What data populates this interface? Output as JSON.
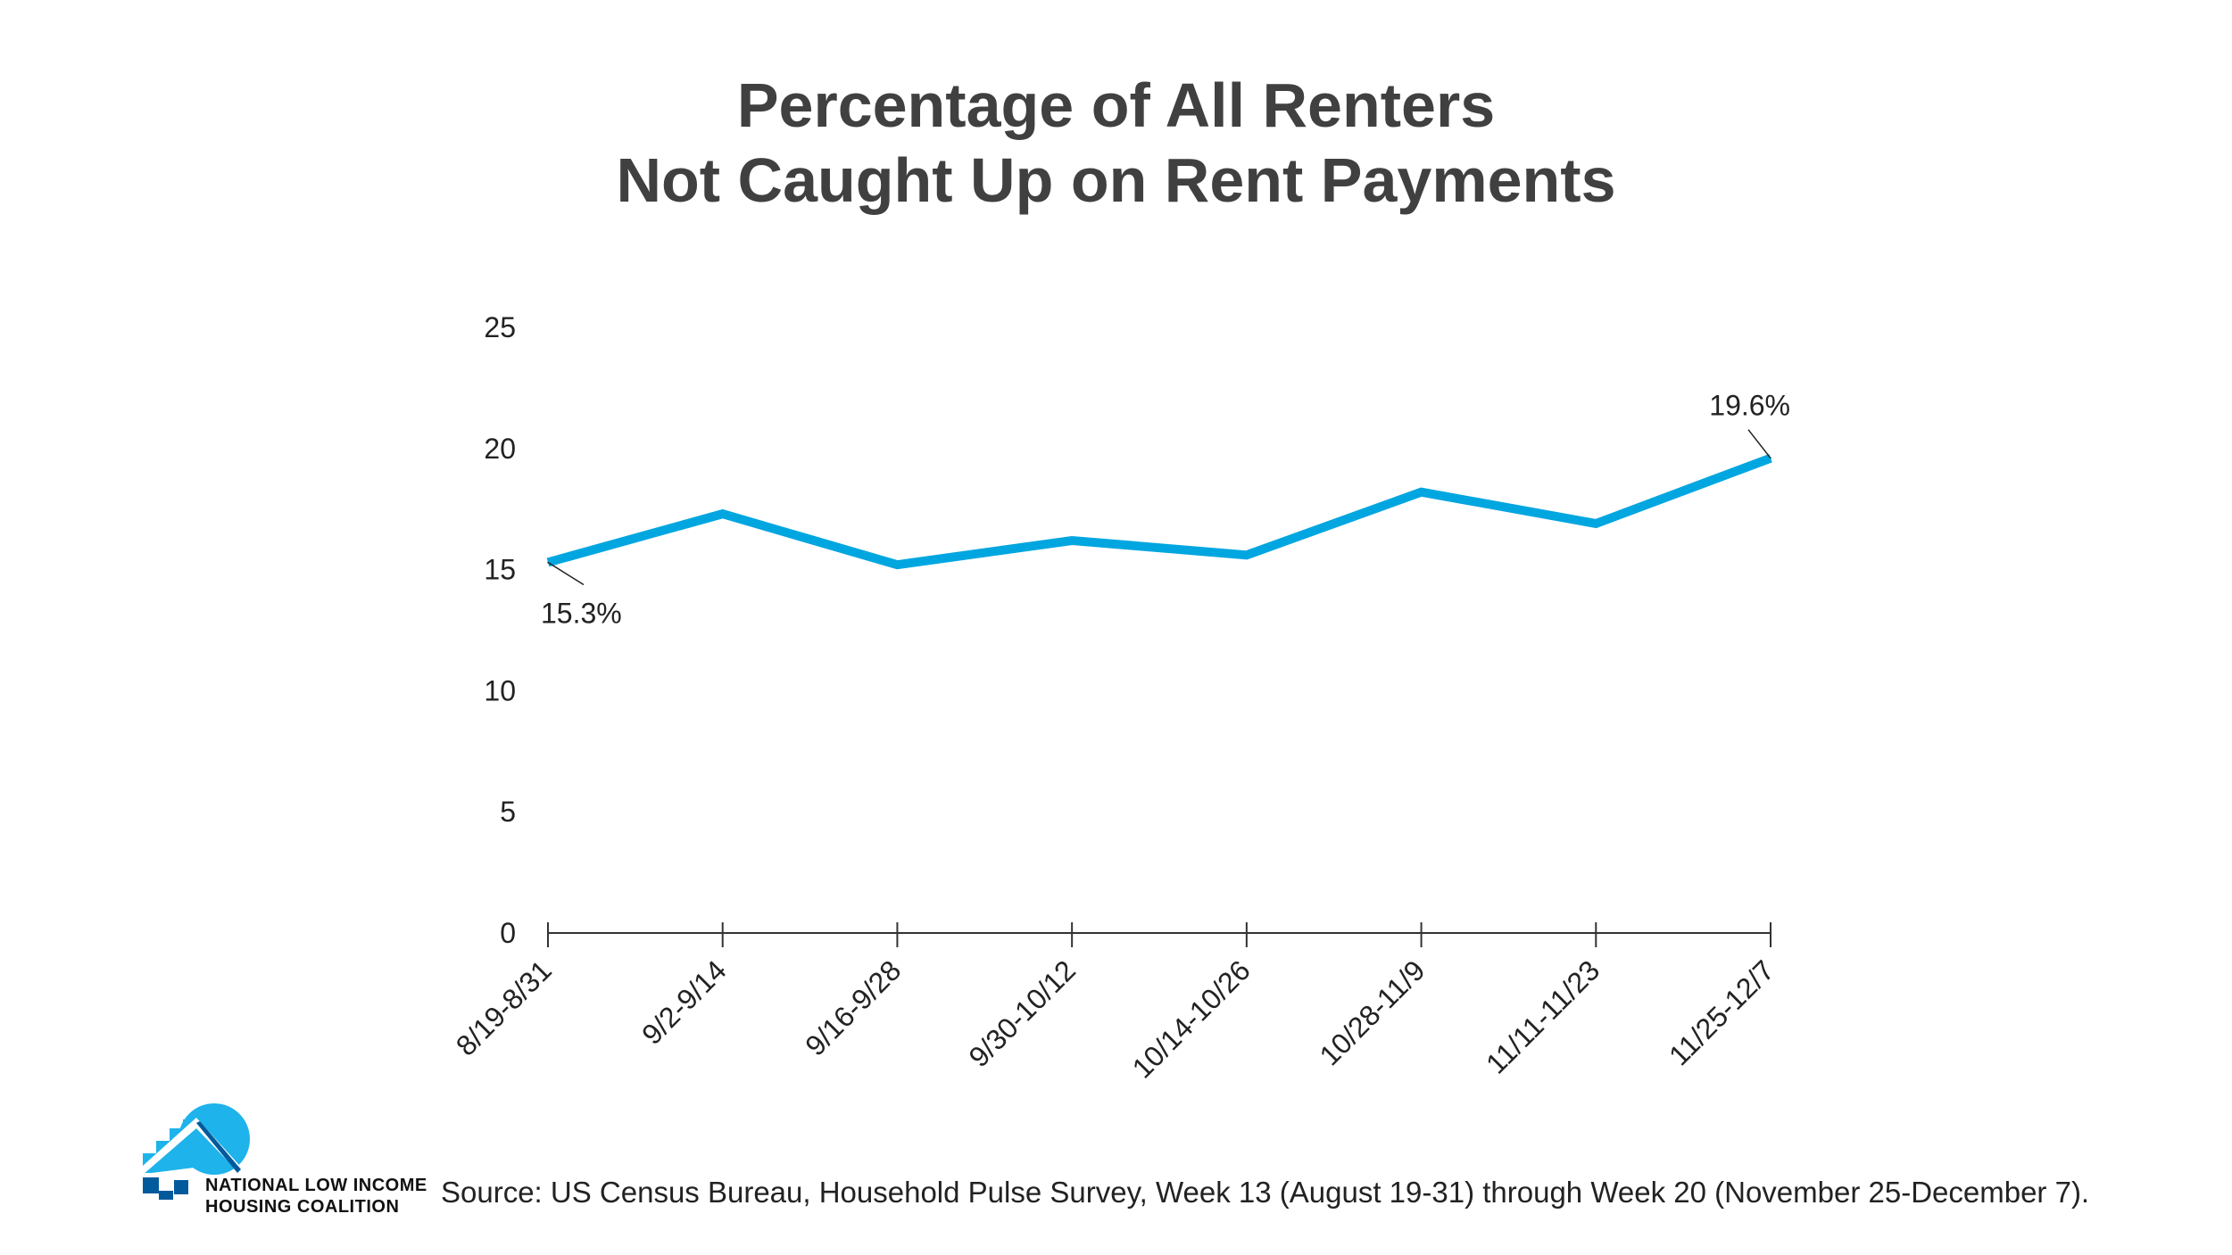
{
  "title_line1": "Percentage of All Renters",
  "title_line2": "Not Caught Up on Rent Payments",
  "source": "Source: US Census Bureau, Household Pulse Survey, Week 13 (August 19-31) through Week 20 (November 25-December 7).",
  "logo": {
    "line1": "NATIONAL LOW INCOME",
    "line2": "HOUSING COALITION"
  },
  "colors": {
    "line": "#00a6e0",
    "title": "#404040",
    "logo_light": "#1eb3ea",
    "logo_dark": "#005a9c"
  },
  "chart_data": {
    "type": "line",
    "categories": [
      "8/19-8/31",
      "9/2-9/14",
      "9/16-9/28",
      "9/30-10/12",
      "10/14-10/26",
      "10/28-11/9",
      "11/11-11/23",
      "11/25-12/7"
    ],
    "values": [
      15.3,
      17.3,
      15.2,
      16.2,
      15.6,
      18.2,
      16.9,
      19.6
    ],
    "ylim": [
      0,
      25
    ],
    "yticks": [
      0,
      5,
      10,
      15,
      20,
      25
    ],
    "annotations": [
      {
        "index": 0,
        "label": "15.3%"
      },
      {
        "index": 7,
        "label": "19.6%"
      }
    ],
    "grid": false,
    "legend": "none"
  }
}
